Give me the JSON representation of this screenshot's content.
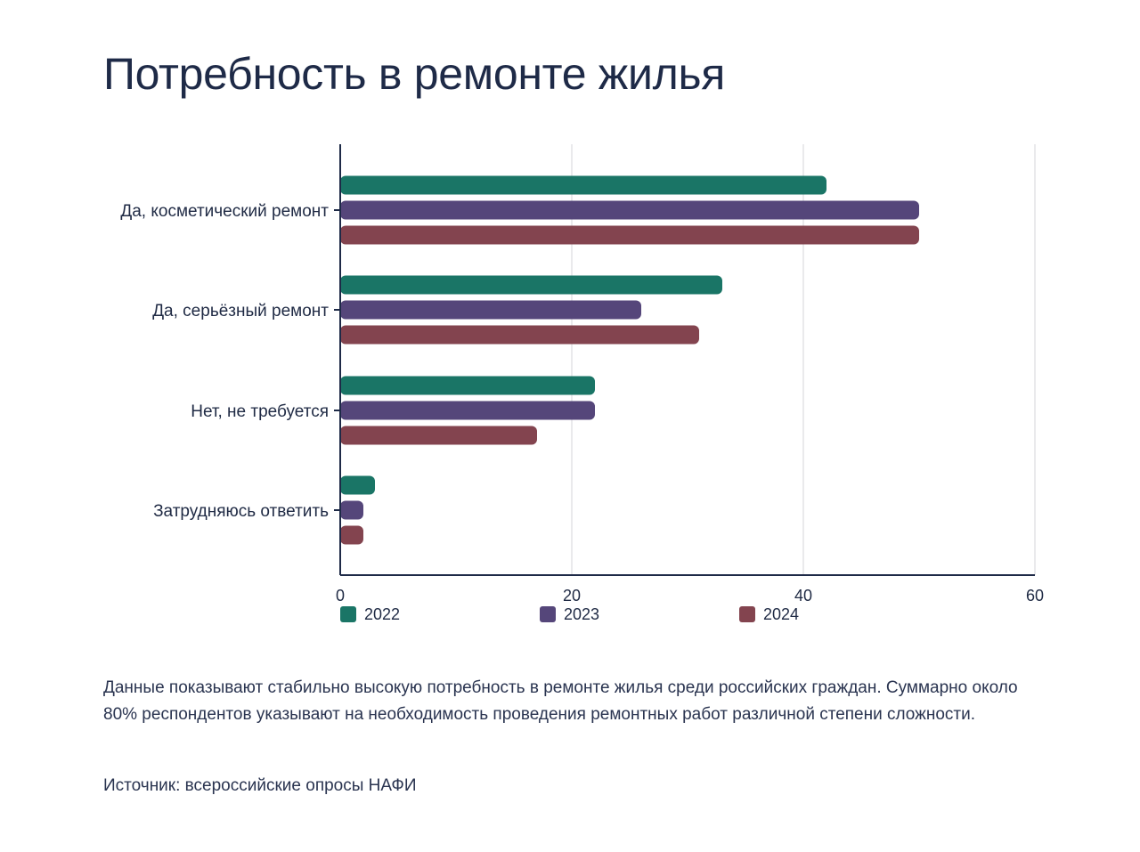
{
  "title": "Потребность в ремонте жилья",
  "description": "Данные показывают стабильно высокую потребность в ремонте жилья среди российских граждан. Суммарно около 80% респондентов указывают на необходимость проведения ремонтных работ различной степени сложности.",
  "source": "Источник: всероссийские опросы НАФИ",
  "chart_data": {
    "type": "bar",
    "orientation": "horizontal",
    "title": "",
    "xlabel": "",
    "ylabel": "",
    "xlim": [
      0,
      60
    ],
    "xticks": [
      0,
      20,
      40,
      60
    ],
    "grid": true,
    "legend_position": "bottom-left",
    "categories": [
      "Да, косметический ремонт",
      "Да, серьёзный ремонт",
      "Нет, не требуется",
      "Затрудняюсь ответить"
    ],
    "series": [
      {
        "name": "2022",
        "color": "#1a7566",
        "values": [
          42,
          33,
          22,
          3
        ]
      },
      {
        "name": "2023",
        "color": "#55467a",
        "values": [
          50,
          26,
          22,
          2
        ]
      },
      {
        "name": "2024",
        "color": "#83444f",
        "values": [
          50,
          31,
          17,
          2
        ]
      }
    ]
  }
}
